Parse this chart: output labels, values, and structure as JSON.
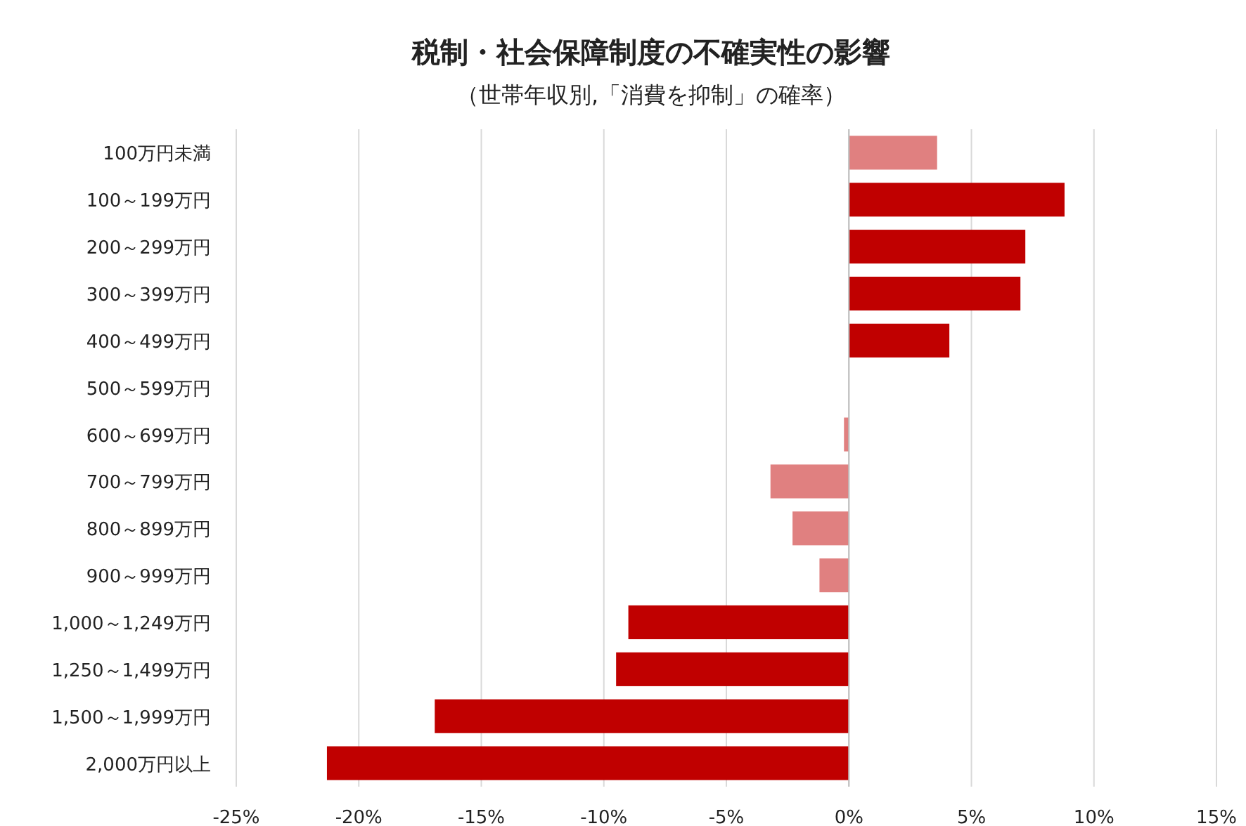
{
  "chart_data": {
    "type": "bar",
    "orientation": "horizontal",
    "title": "税制・社会保障制度の不確実性の影響",
    "subtitle": "（世帯年収別,「消費を抑制」の確率）",
    "categories": [
      "100万円未満",
      "100～199万円",
      "200～299万円",
      "300～399万円",
      "400～499万円",
      "500～599万円",
      "600～699万円",
      "700～799万円",
      "800～899万円",
      "900～999万円",
      "1,000～1,249万円",
      "1,250～1,499万円",
      "1,500～1,999万円",
      "2,000万円以上"
    ],
    "values": [
      3.6,
      8.8,
      7.2,
      7.0,
      4.1,
      null,
      -0.2,
      -3.2,
      -2.3,
      -1.2,
      -9.0,
      -9.5,
      -16.9,
      -21.3
    ],
    "colors": [
      "#e08080",
      "#c00000",
      "#c00000",
      "#c00000",
      "#c00000",
      null,
      "#e08080",
      "#e08080",
      "#e08080",
      "#e08080",
      "#c00000",
      "#c00000",
      "#c00000",
      "#c00000"
    ],
    "xlim": [
      -25,
      15
    ],
    "xticks": [
      {
        "value": -25,
        "label": "-25%"
      },
      {
        "value": -20,
        "label": "-20%"
      },
      {
        "value": -15,
        "label": "-15%"
      },
      {
        "value": -10,
        "label": "-10%"
      },
      {
        "value": -5,
        "label": "-5%"
      },
      {
        "value": 0,
        "label": "0%"
      },
      {
        "value": 5,
        "label": "5%"
      },
      {
        "value": 10,
        "label": "10%"
      },
      {
        "value": 15,
        "label": "15%"
      }
    ],
    "grid": "x"
  }
}
